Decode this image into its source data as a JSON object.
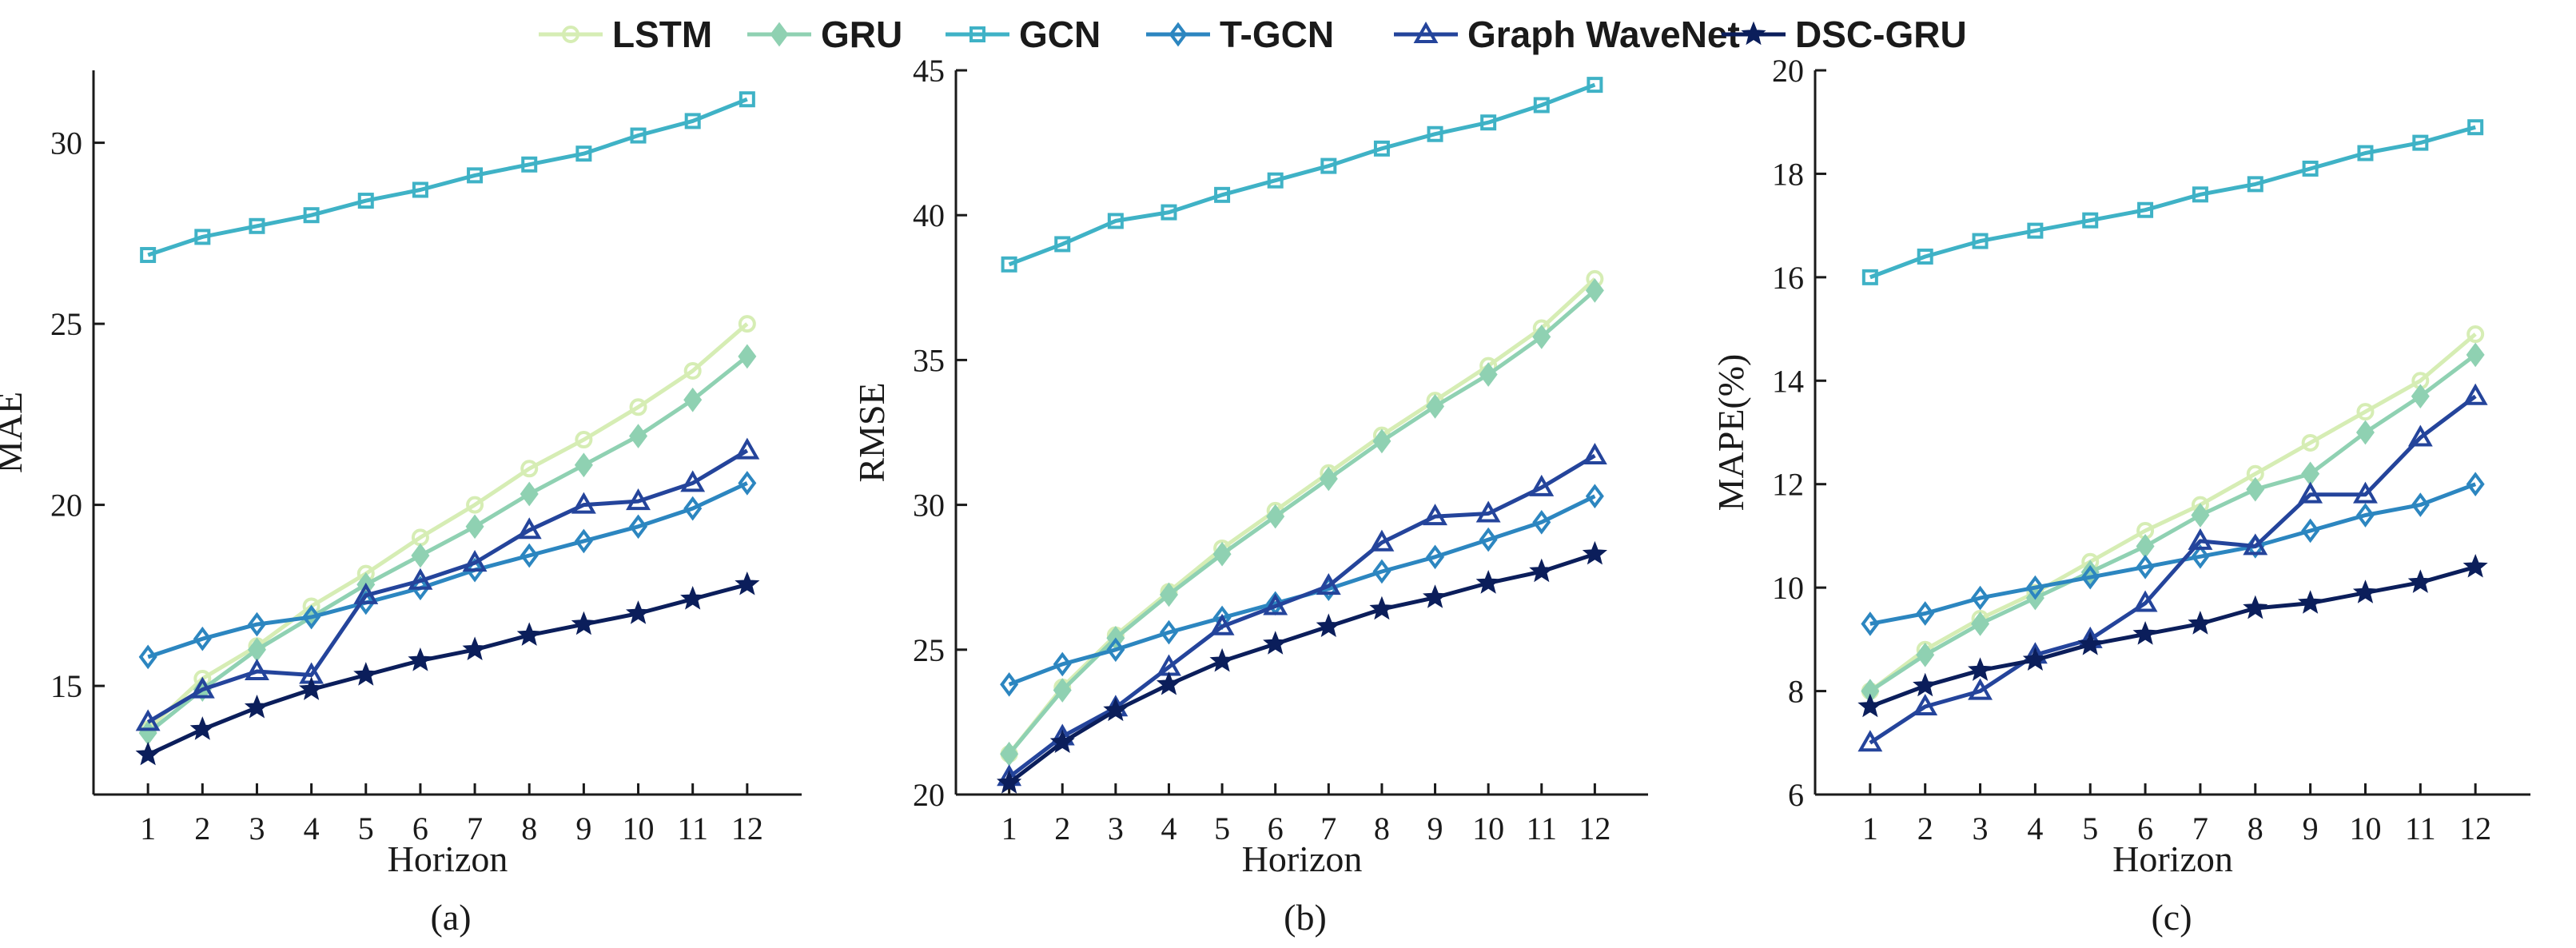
{
  "legend": [
    {
      "name": "LSTM",
      "color": "#d6edb4",
      "marker": "circle"
    },
    {
      "name": "GRU",
      "color": "#8fd1b2",
      "marker": "diamond-filled"
    },
    {
      "name": "GCN",
      "color": "#3fb2c6",
      "marker": "square"
    },
    {
      "name": "T-GCN",
      "color": "#2c86c0",
      "marker": "diamond"
    },
    {
      "name": "Graph WaveNet",
      "color": "#24449b",
      "marker": "triangle"
    },
    {
      "name": "DSC-GRU",
      "color": "#0b1e5b",
      "marker": "star"
    }
  ],
  "chart_data": [
    {
      "type": "line",
      "caption": "(a)",
      "xlabel": "Horizon",
      "ylabel": "MAE",
      "x": [
        1,
        2,
        3,
        4,
        5,
        6,
        7,
        8,
        9,
        10,
        11,
        12
      ],
      "xlim": [
        0,
        13
      ],
      "ylim": [
        12,
        32
      ],
      "yticks": [
        15,
        20,
        25,
        30
      ],
      "series": [
        {
          "name": "LSTM",
          "values": [
            13.8,
            15.2,
            16.1,
            17.2,
            18.1,
            19.1,
            20.0,
            21.0,
            21.8,
            22.7,
            23.7,
            25.0
          ]
        },
        {
          "name": "GRU",
          "values": [
            13.7,
            14.9,
            16.0,
            16.9,
            17.8,
            18.6,
            19.4,
            20.3,
            21.1,
            21.9,
            22.9,
            24.1
          ]
        },
        {
          "name": "GCN",
          "values": [
            26.9,
            27.4,
            27.7,
            28.0,
            28.4,
            28.7,
            29.1,
            29.4,
            29.7,
            30.2,
            30.6,
            31.2
          ]
        },
        {
          "name": "T-GCN",
          "values": [
            15.8,
            16.3,
            16.7,
            16.9,
            17.3,
            17.7,
            18.2,
            18.6,
            19.0,
            19.4,
            19.9,
            20.6
          ]
        },
        {
          "name": "Graph WaveNet",
          "values": [
            14.0,
            14.9,
            15.4,
            15.3,
            17.5,
            17.9,
            18.4,
            19.3,
            20.0,
            20.1,
            20.6,
            21.5
          ]
        },
        {
          "name": "DSC-GRU",
          "values": [
            13.1,
            13.8,
            14.4,
            14.9,
            15.3,
            15.7,
            16.0,
            16.4,
            16.7,
            17.0,
            17.4,
            17.8
          ]
        }
      ]
    },
    {
      "type": "line",
      "caption": "(b)",
      "xlabel": "Horizon",
      "ylabel": "RMSE",
      "x": [
        1,
        2,
        3,
        4,
        5,
        6,
        7,
        8,
        9,
        10,
        11,
        12
      ],
      "xlim": [
        0,
        13
      ],
      "ylim": [
        20,
        45
      ],
      "yticks": [
        20,
        25,
        30,
        35,
        40,
        45
      ],
      "series": [
        {
          "name": "LSTM",
          "values": [
            21.4,
            23.7,
            25.5,
            27.0,
            28.5,
            29.8,
            31.1,
            32.4,
            33.6,
            34.8,
            36.1,
            37.8
          ]
        },
        {
          "name": "GRU",
          "values": [
            21.4,
            23.6,
            25.4,
            26.9,
            28.3,
            29.6,
            30.9,
            32.2,
            33.4,
            34.5,
            35.8,
            37.4
          ]
        },
        {
          "name": "GCN",
          "values": [
            38.3,
            39.0,
            39.8,
            40.1,
            40.7,
            41.2,
            41.7,
            42.3,
            42.8,
            43.2,
            43.8,
            44.5
          ]
        },
        {
          "name": "T-GCN",
          "values": [
            23.8,
            24.5,
            25.0,
            25.6,
            26.1,
            26.6,
            27.1,
            27.7,
            28.2,
            28.8,
            29.4,
            30.3
          ]
        },
        {
          "name": "Graph WaveNet",
          "values": [
            20.6,
            22.0,
            23.0,
            24.4,
            25.8,
            26.5,
            27.2,
            28.7,
            29.6,
            29.7,
            30.6,
            31.7
          ]
        },
        {
          "name": "DSC-GRU",
          "values": [
            20.4,
            21.8,
            22.9,
            23.8,
            24.6,
            25.2,
            25.8,
            26.4,
            26.8,
            27.3,
            27.7,
            28.3
          ]
        }
      ]
    },
    {
      "type": "line",
      "caption": "(c)",
      "xlabel": "Horizon",
      "ylabel": "MAPE(%)",
      "x": [
        1,
        2,
        3,
        4,
        5,
        6,
        7,
        8,
        9,
        10,
        11,
        12
      ],
      "xlim": [
        0,
        13
      ],
      "ylim": [
        6,
        20
      ],
      "yticks": [
        6,
        8,
        10,
        12,
        14,
        16,
        18,
        20
      ],
      "series": [
        {
          "name": "LSTM",
          "values": [
            8.0,
            8.8,
            9.4,
            9.9,
            10.5,
            11.1,
            11.6,
            12.2,
            12.8,
            13.4,
            14.0,
            14.9
          ]
        },
        {
          "name": "GRU",
          "values": [
            8.0,
            8.7,
            9.3,
            9.8,
            10.3,
            10.8,
            11.4,
            11.9,
            12.2,
            13.0,
            13.7,
            14.5
          ]
        },
        {
          "name": "GCN",
          "values": [
            16.0,
            16.4,
            16.7,
            16.9,
            17.1,
            17.3,
            17.6,
            17.8,
            18.1,
            18.4,
            18.6,
            18.9
          ]
        },
        {
          "name": "T-GCN",
          "values": [
            9.3,
            9.5,
            9.8,
            10.0,
            10.2,
            10.4,
            10.6,
            10.8,
            11.1,
            11.4,
            11.6,
            12.0
          ]
        },
        {
          "name": "Graph WaveNet",
          "values": [
            7.0,
            7.7,
            8.0,
            8.7,
            9.0,
            9.7,
            10.9,
            10.8,
            11.8,
            11.8,
            12.9,
            13.7
          ]
        },
        {
          "name": "DSC-GRU",
          "values": [
            7.7,
            8.1,
            8.4,
            8.6,
            8.9,
            9.1,
            9.3,
            9.6,
            9.7,
            9.9,
            10.1,
            10.4
          ]
        }
      ]
    }
  ]
}
